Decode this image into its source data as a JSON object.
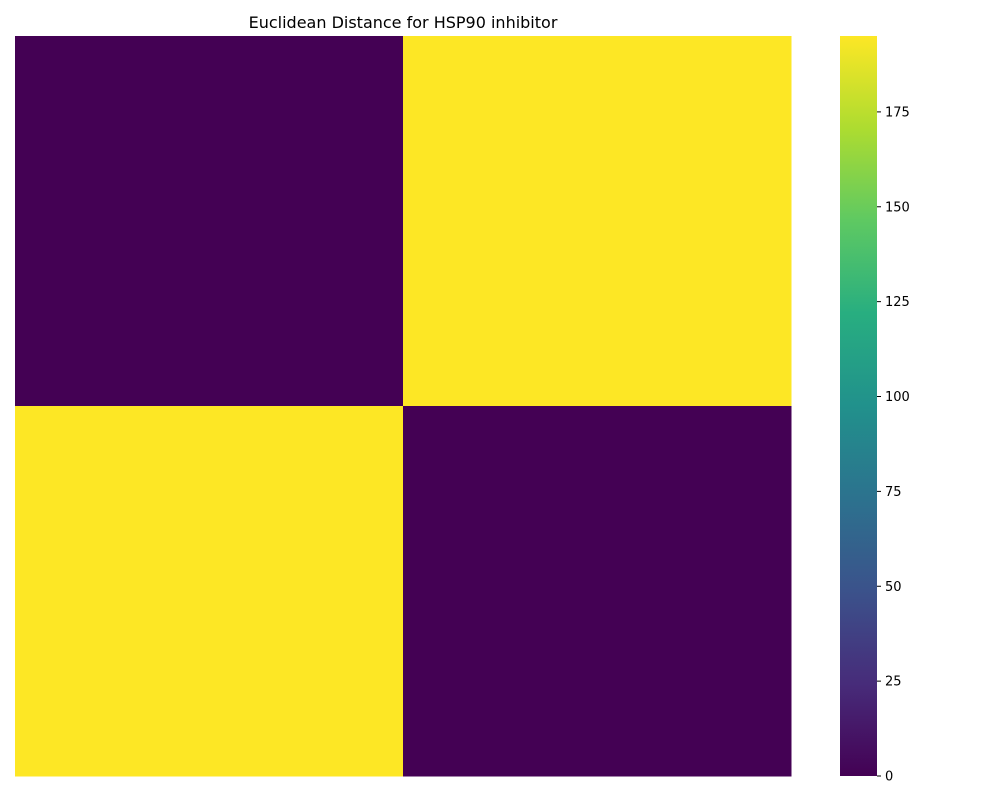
{
  "chart_data": {
    "type": "heatmap",
    "title": "Euclidean Distance for HSP90 inhibitor",
    "xlabel": "",
    "ylabel": "",
    "matrix": [
      [
        0,
        195
      ],
      [
        195,
        0
      ]
    ],
    "colormap": "viridis",
    "colorbar": {
      "range": [
        0,
        195
      ],
      "ticks": [
        0,
        25,
        50,
        75,
        100,
        125,
        150,
        175
      ],
      "tick_labels": [
        "0",
        "25",
        "50",
        "75",
        "100",
        "125",
        "150",
        "175"
      ]
    },
    "grid": false
  }
}
